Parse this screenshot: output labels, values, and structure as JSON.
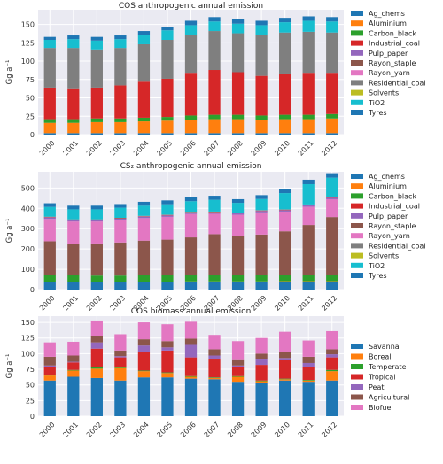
{
  "colors": {
    "plot_bg": "#eaeaf2",
    "grid": "#ffffff",
    "Ag_chems": "#1f77b4",
    "Aluminium": "#ff7f0e",
    "Carbon_black": "#2ca02c",
    "Industrial_coal": "#d62728",
    "Pulp_paper": "#9467bd",
    "Rayon_staple": "#8c564b",
    "Rayon_yarn": "#e377c2",
    "Residential_coal": "#7f7f7f",
    "Solvents": "#bcbd22",
    "TiO2": "#17becf",
    "Tyres": "#1f77b4",
    "Savanna": "#1f77b4",
    "Boreal": "#ff7f0e",
    "Temperate": "#2ca02c",
    "Tropical": "#d62728",
    "Peat": "#9467bd",
    "Agricultural": "#8c564b",
    "Biofuel": "#e377c2"
  },
  "chart_data": [
    {
      "type": "bar",
      "stacked": true,
      "title": "COS anthropogenic annual emission",
      "ylabel": "Gg a⁻¹",
      "ylim": [
        0,
        170
      ],
      "yticks": [
        0,
        25,
        50,
        75,
        100,
        125,
        150
      ],
      "grid": true,
      "legend_position": "right",
      "categories": [
        "2000",
        "2001",
        "2002",
        "2003",
        "2004",
        "2005",
        "2006",
        "2007",
        "2008",
        "2009",
        "2010",
        "2011",
        "2012"
      ],
      "series": [
        {
          "name": "Tyres",
          "color_key": "Tyres",
          "values": [
            2,
            2,
            2,
            2,
            2,
            2,
            2,
            2,
            2,
            2,
            2,
            2,
            2
          ]
        },
        {
          "name": "TiO2",
          "color_key": "TiO2",
          "values": [
            0,
            0,
            0,
            0,
            0,
            0,
            0,
            0,
            0,
            0,
            0,
            0,
            0
          ]
        },
        {
          "name": "Solvents",
          "color_key": "Solvents",
          "values": [
            0,
            0,
            0,
            0,
            0,
            0,
            0,
            0,
            0,
            0,
            0,
            0,
            0
          ]
        },
        {
          "name": "Aluminium",
          "color_key": "Aluminium",
          "values": [
            14,
            14,
            15,
            15,
            16,
            17,
            18,
            19,
            19,
            18,
            19,
            19,
            20
          ]
        },
        {
          "name": "Carbon_black",
          "color_key": "Carbon_black",
          "values": [
            5,
            5,
            5,
            5,
            5,
            5,
            6,
            6,
            6,
            6,
            6,
            6,
            6
          ]
        },
        {
          "name": "Industrial_coal",
          "color_key": "Industrial_coal",
          "values": [
            43,
            42,
            42,
            45,
            49,
            52,
            57,
            61,
            58,
            54,
            55,
            56,
            55
          ]
        },
        {
          "name": "Pulp_paper",
          "color_key": "Pulp_paper",
          "values": [
            0,
            0,
            0,
            0,
            0,
            0,
            0,
            0,
            0,
            0,
            0,
            0,
            0
          ]
        },
        {
          "name": "Rayon_staple",
          "color_key": "Rayon_staple",
          "values": [
            0,
            0,
            0,
            0,
            0,
            0,
            0,
            0,
            0,
            0,
            0,
            0,
            0
          ]
        },
        {
          "name": "Rayon_yarn",
          "color_key": "Rayon_yarn",
          "values": [
            0,
            0,
            0,
            0,
            0,
            0,
            0,
            0,
            0,
            0,
            0,
            0,
            0
          ]
        },
        {
          "name": "Residential_coal",
          "color_key": "Residential_coal",
          "values": [
            54,
            55,
            52,
            51,
            51,
            53,
            53,
            53,
            53,
            56,
            57,
            57,
            56
          ]
        },
        {
          "name": "TiO2",
          "color_key": "TiO2",
          "values": [
            11,
            12,
            12,
            12,
            13,
            13,
            13,
            13,
            13,
            13,
            14,
            15,
            15
          ]
        },
        {
          "name": "Ag_chems",
          "color_key": "Ag_chems",
          "values": [
            4,
            5,
            5,
            5,
            5,
            5,
            6,
            6,
            6,
            6,
            6,
            6,
            6
          ]
        }
      ]
    },
    {
      "type": "bar",
      "stacked": true,
      "title": "CS₂ anthropogenic annual emission",
      "ylabel": "Gg a⁻¹",
      "ylim": [
        0,
        580
      ],
      "yticks": [
        0,
        100,
        200,
        300,
        400,
        500
      ],
      "grid": true,
      "legend_position": "right",
      "categories": [
        "2000",
        "2001",
        "2002",
        "2003",
        "2004",
        "2005",
        "2006",
        "2007",
        "2008",
        "2009",
        "2010",
        "2011",
        "2012"
      ],
      "series": [
        {
          "name": "Tyres",
          "color_key": "Tyres",
          "values": [
            35,
            35,
            35,
            35,
            36,
            36,
            37,
            37,
            37,
            37,
            38,
            38,
            38
          ]
        },
        {
          "name": "Aluminium",
          "color_key": "Aluminium",
          "values": [
            3,
            3,
            3,
            3,
            3,
            3,
            3,
            3,
            3,
            3,
            3,
            3,
            3
          ]
        },
        {
          "name": "Carbon_black",
          "color_key": "Carbon_black",
          "values": [
            32,
            32,
            31,
            31,
            32,
            32,
            32,
            33,
            32,
            31,
            31,
            32,
            31
          ]
        },
        {
          "name": "Rayon_staple",
          "color_key": "Rayon_staple",
          "values": [
            168,
            155,
            158,
            163,
            170,
            175,
            185,
            200,
            190,
            200,
            215,
            245,
            285
          ]
        },
        {
          "name": "Rayon_yarn",
          "color_key": "Rayon_yarn",
          "values": [
            110,
            110,
            108,
            110,
            111,
            112,
            115,
            100,
            106,
            109,
            97,
            90,
            88
          ]
        },
        {
          "name": "Pulp_paper",
          "color_key": "Pulp_paper",
          "values": [
            7,
            7,
            7,
            7,
            7,
            7,
            7,
            7,
            7,
            7,
            7,
            7,
            7
          ]
        },
        {
          "name": "Industrial_coal",
          "color_key": "Industrial_coal",
          "values": [
            2,
            2,
            2,
            2,
            2,
            2,
            2,
            2,
            2,
            2,
            2,
            2,
            2
          ]
        },
        {
          "name": "Residential_coal",
          "color_key": "Residential_coal",
          "values": [
            2,
            2,
            2,
            2,
            2,
            2,
            2,
            2,
            2,
            2,
            2,
            2,
            2
          ]
        },
        {
          "name": "TiO2",
          "color_key": "TiO2",
          "values": [
            48,
            49,
            49,
            50,
            50,
            51,
            52,
            58,
            48,
            55,
            80,
            100,
            95
          ]
        },
        {
          "name": "Ag_chems",
          "color_key": "Ag_chems",
          "values": [
            18,
            18,
            18,
            18,
            19,
            19,
            19,
            20,
            18,
            19,
            21,
            22,
            22
          ]
        }
      ]
    },
    {
      "type": "bar",
      "stacked": true,
      "title": "COS biomass annual emission",
      "ylabel": "Gg a⁻¹",
      "ylim": [
        0,
        160
      ],
      "yticks": [
        0,
        25,
        50,
        75,
        100,
        125,
        150
      ],
      "grid": true,
      "legend_position": "right",
      "categories": [
        "2000",
        "2001",
        "2002",
        "2003",
        "2004",
        "2005",
        "2006",
        "2007",
        "2008",
        "2009",
        "2010",
        "2011",
        "2012"
      ],
      "series": [
        {
          "name": "Savanna",
          "color_key": "Savanna",
          "values": [
            57,
            63,
            61,
            57,
            62,
            62,
            60,
            59,
            55,
            53,
            57,
            55,
            57
          ]
        },
        {
          "name": "Boreal",
          "color_key": "Boreal",
          "values": [
            8,
            10,
            15,
            20,
            10,
            7,
            3,
            2,
            8,
            3,
            2,
            2,
            15
          ]
        },
        {
          "name": "Temperate",
          "color_key": "Temperate",
          "values": [
            1,
            1,
            2,
            2,
            1,
            1,
            1,
            1,
            1,
            1,
            1,
            1,
            2
          ]
        },
        {
          "name": "Tropical",
          "color_key": "Tropical",
          "values": [
            13,
            12,
            30,
            15,
            30,
            35,
            30,
            30,
            15,
            25,
            30,
            20,
            20
          ]
        },
        {
          "name": "Peat",
          "color_key": "Peat",
          "values": [
            2,
            1,
            10,
            2,
            10,
            5,
            20,
            5,
            2,
            10,
            3,
            7,
            5
          ]
        },
        {
          "name": "Agricultural",
          "color_key": "Agricultural",
          "values": [
            14,
            10,
            10,
            9,
            10,
            10,
            10,
            10,
            10,
            8,
            9,
            10,
            8
          ]
        },
        {
          "name": "Biofuel",
          "color_key": "Biofuel",
          "values": [
            23,
            22,
            25,
            26,
            27,
            27,
            27,
            23,
            29,
            25,
            33,
            26,
            29
          ]
        }
      ]
    }
  ],
  "legends": [
    [
      "Ag_chems",
      "Aluminium",
      "Carbon_black",
      "Industrial_coal",
      "Pulp_paper",
      "Rayon_staple",
      "Rayon_yarn",
      "Residential_coal",
      "Solvents",
      "TiO2",
      "Tyres"
    ],
    [
      "Ag_chems",
      "Aluminium",
      "Carbon_black",
      "Industrial_coal",
      "Pulp_paper",
      "Rayon_staple",
      "Rayon_yarn",
      "Residential_coal",
      "Solvents",
      "TiO2",
      "Tyres"
    ],
    [
      "Savanna",
      "Boreal",
      "Temperate",
      "Tropical",
      "Peat",
      "Agricultural",
      "Biofuel"
    ]
  ]
}
